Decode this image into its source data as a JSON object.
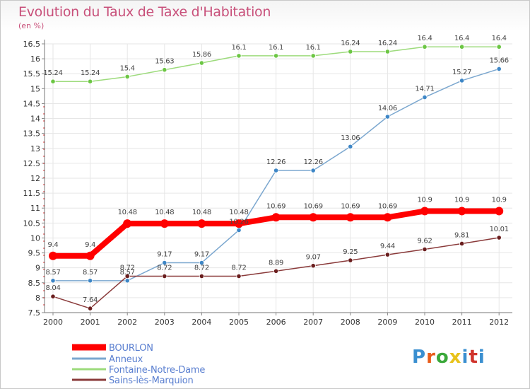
{
  "title": "Evolution du Taux de Taxe d'Habitation",
  "unit_label": "(en %)",
  "logo": {
    "text": "Proxiti",
    "colors": [
      "#3a8fd0",
      "#e85c1a",
      "#3aa83a",
      "#e8c21a",
      "#3a8fd0",
      "#d0342c",
      "#3a8fd0"
    ]
  },
  "chart_data": {
    "type": "line",
    "title": "Evolution du Taux de Taxe d'Habitation",
    "ylabel": "(en %)",
    "x": [
      "2000",
      "2001",
      "2002",
      "2003",
      "2004",
      "2005",
      "2006",
      "2007",
      "2008",
      "2009",
      "2010",
      "2011",
      "2012"
    ],
    "ylim": [
      7.5,
      16.5
    ],
    "yticks": [
      "7.5",
      "8",
      "8.5",
      "9",
      "9.5",
      "10",
      "10.5",
      "11",
      "11.5",
      "12",
      "12.5",
      "13",
      "13.5",
      "14",
      "14.5",
      "15",
      "15.5",
      "16",
      "16.5"
    ],
    "grid": true,
    "legend_position": "bottom-left",
    "series": [
      {
        "name": "BOURLON",
        "color": "#ff0000",
        "width": 8,
        "marker": "#ff0000",
        "marker_r": 6,
        "values": [
          9.4,
          9.4,
          10.48,
          10.48,
          10.48,
          10.48,
          10.69,
          10.69,
          10.69,
          10.69,
          10.9,
          10.9,
          10.9
        ],
        "labels": [
          "9.4",
          "9.4",
          "10.48",
          "10.48",
          "10.48",
          "10.48",
          "10.69",
          "10.69",
          "10.69",
          "10.69",
          "10.9",
          "10.9",
          "10.9"
        ]
      },
      {
        "name": "Anneux",
        "color": "#7ba7cf",
        "width": 1.5,
        "marker": "#3d86c6",
        "marker_r": 3.2,
        "values": [
          8.57,
          8.57,
          8.57,
          9.17,
          9.17,
          10.26,
          12.26,
          12.26,
          13.06,
          14.06,
          14.71,
          15.27,
          15.66
        ],
        "labels": [
          "8.57",
          "8.57",
          "8.57",
          "9.17",
          "9.17",
          "10.26",
          "12.26",
          "12.26",
          "13.06",
          "14.06",
          "14.71",
          "15.27",
          "15.66"
        ]
      },
      {
        "name": "Fontaine-Notre-Dame",
        "color": "#9ddb7c",
        "width": 1.5,
        "marker": "#6cc644",
        "marker_r": 3.2,
        "values": [
          15.24,
          15.24,
          15.4,
          15.63,
          15.86,
          16.1,
          16.1,
          16.1,
          16.24,
          16.24,
          16.4,
          16.4,
          16.4
        ],
        "labels": [
          "15.24",
          "15.24",
          "15.4",
          "15.63",
          "15.86",
          "16.1",
          "16.1",
          "16.1",
          "16.24",
          "16.24",
          "16.4",
          "16.4",
          "16.4"
        ]
      },
      {
        "name": "Sains-lès-Marquion",
        "color": "#8a3a3a",
        "width": 1.5,
        "marker": "#6a1e1e",
        "marker_r": 3.2,
        "values": [
          8.04,
          7.64,
          8.72,
          8.72,
          8.72,
          8.72,
          8.89,
          9.07,
          9.25,
          9.44,
          9.62,
          9.81,
          10.01
        ],
        "labels": [
          "8.04",
          "7.64",
          "8.72",
          "8.72",
          "8.72",
          "8.72",
          "8.89",
          "9.07",
          "9.25",
          "9.44",
          "9.62",
          "9.81",
          "10.01"
        ]
      }
    ]
  }
}
